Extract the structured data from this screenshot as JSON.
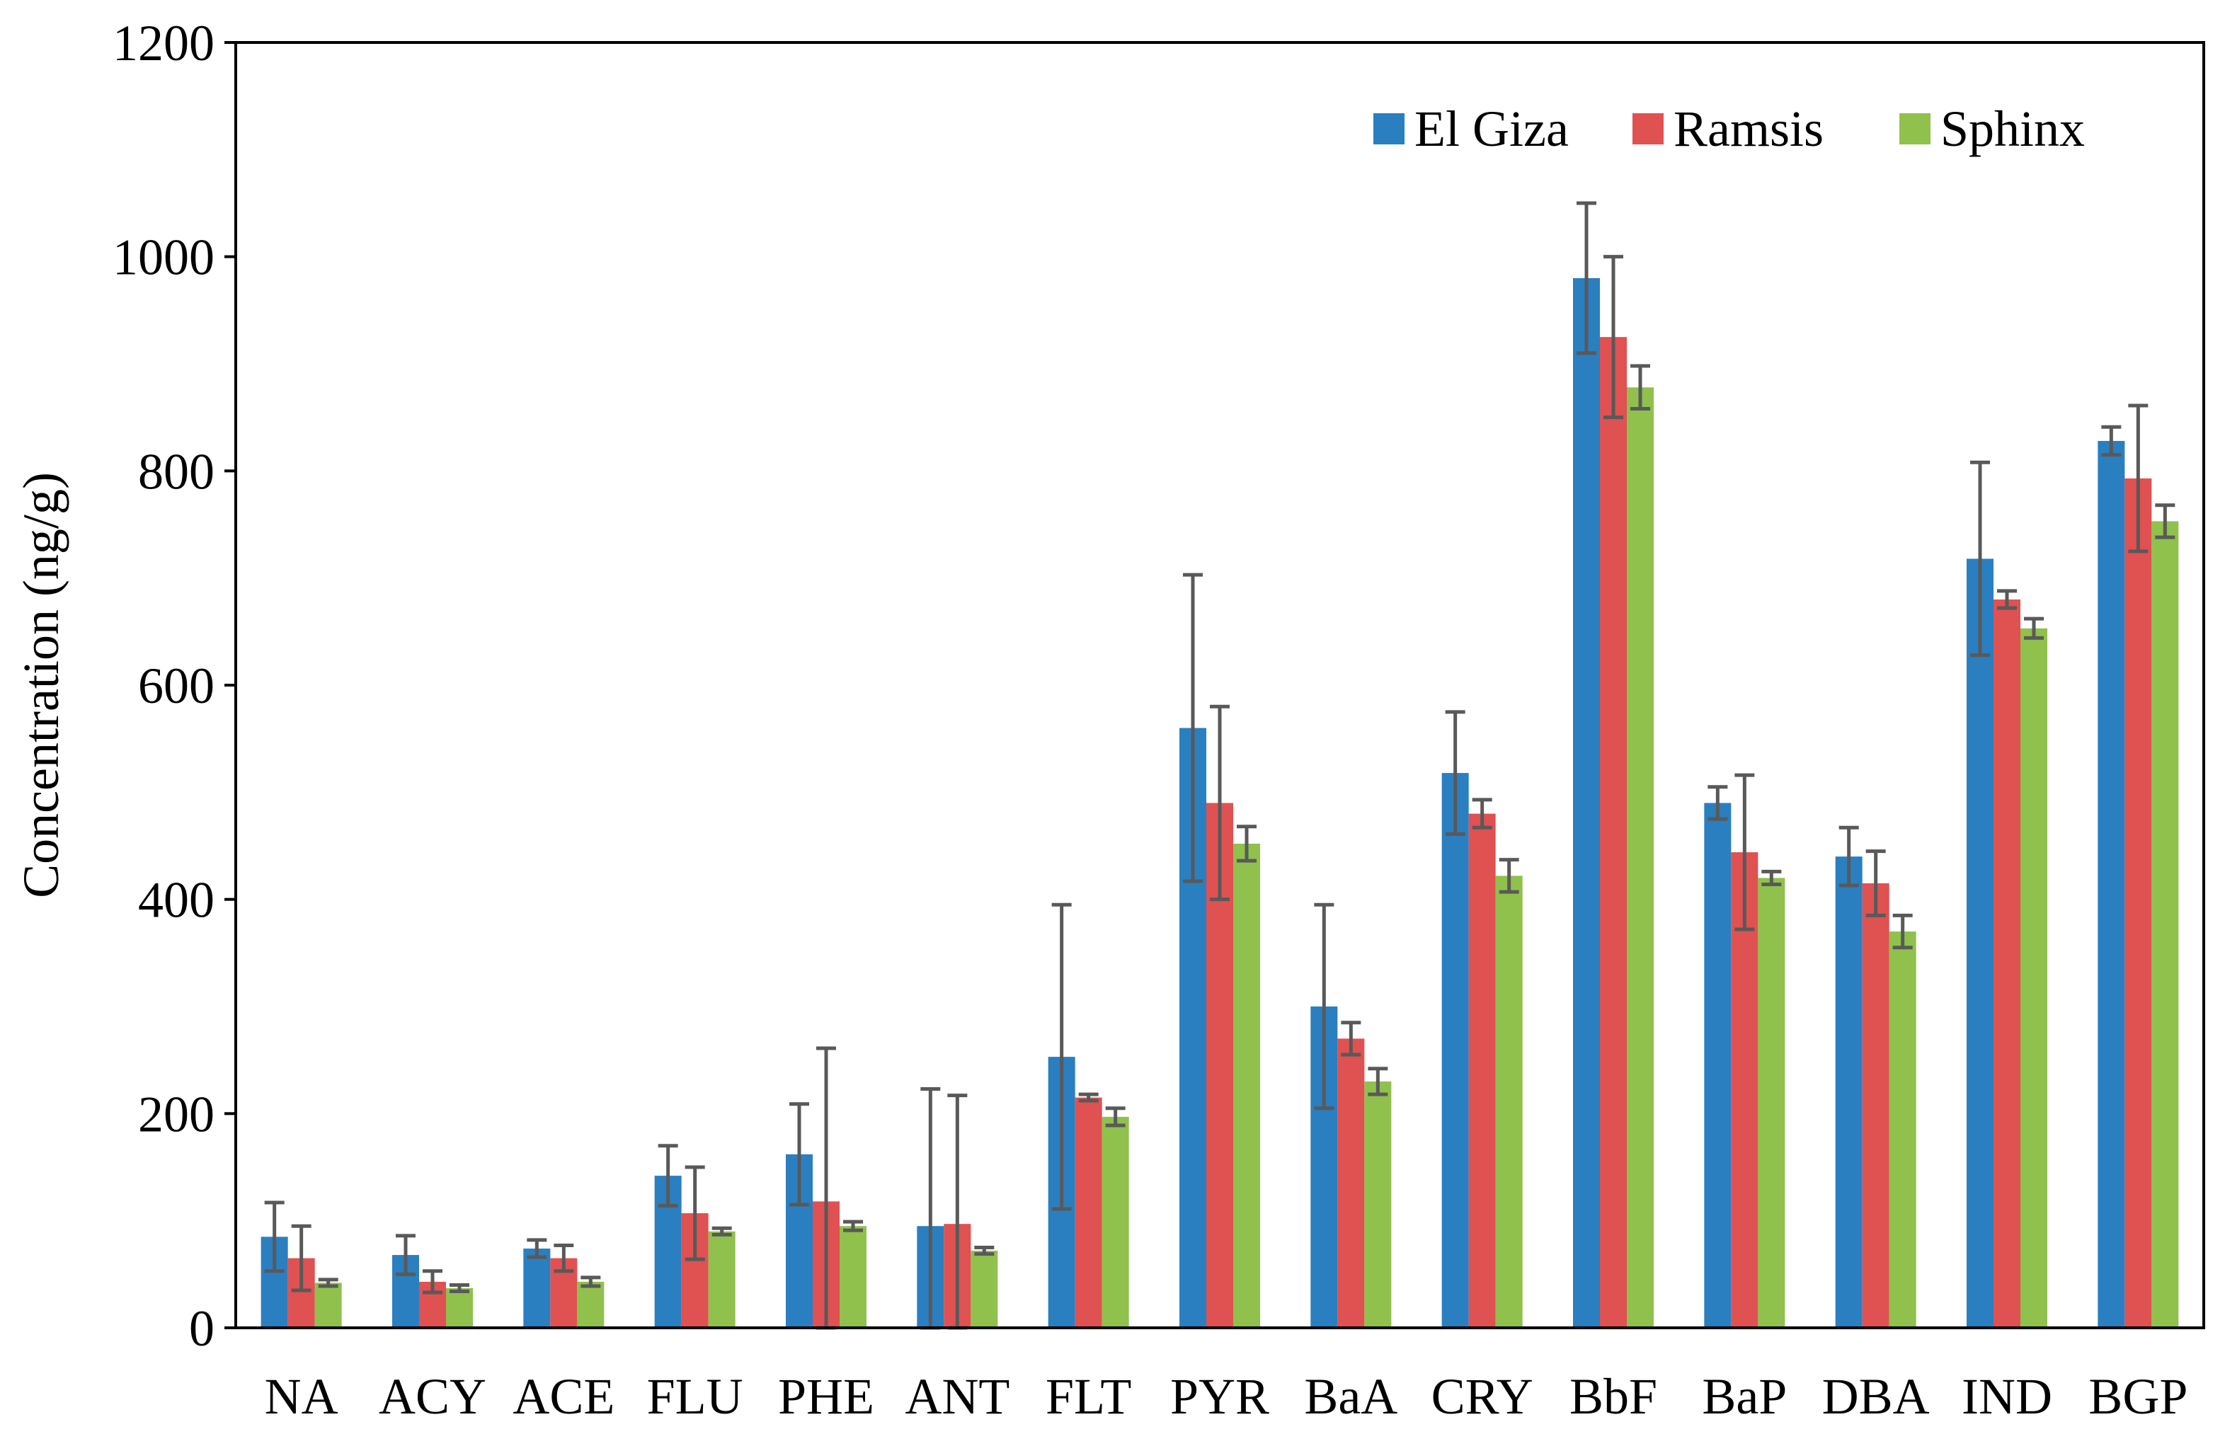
{
  "chart_data": {
    "type": "bar",
    "title": "",
    "xlabel": "",
    "ylabel": "Concentration (ng/g)",
    "ylim": [
      0,
      1200
    ],
    "yticks": [
      0,
      200,
      400,
      600,
      800,
      1000,
      1200
    ],
    "ytick_labels": [
      "0",
      "200",
      "400",
      "600",
      "800",
      "1000",
      "1200"
    ],
    "grid": false,
    "legend_position": "top-right",
    "categories": [
      "NA",
      "ACY",
      "ACE",
      "FLU",
      "PHE",
      "ANT",
      "FLT",
      "PYR",
      "BaA",
      "CRY",
      "BbF",
      "BaP",
      "DBA",
      "IND",
      "BGP"
    ],
    "series": [
      {
        "name": "El Giza",
        "color": "#2a7fc0",
        "values": [
          85,
          68,
          74,
          142,
          162,
          95,
          253,
          560,
          300,
          518,
          980,
          490,
          440,
          718,
          828
        ],
        "errors": [
          32,
          18,
          8,
          28,
          47,
          128,
          142,
          143,
          95,
          57,
          70,
          15,
          27,
          90,
          13
        ]
      },
      {
        "name": "Ramsis",
        "color": "#e05151",
        "values": [
          65,
          43,
          65,
          107,
          118,
          97,
          215,
          490,
          270,
          480,
          925,
          444,
          415,
          680,
          793
        ],
        "errors": [
          30,
          10,
          12,
          43,
          143,
          120,
          3,
          90,
          15,
          13,
          75,
          72,
          30,
          8,
          68
        ]
      },
      {
        "name": "Sphinx",
        "color": "#8fc14c",
        "values": [
          42,
          37,
          43,
          90,
          95,
          72,
          197,
          452,
          230,
          422,
          878,
          420,
          370,
          653,
          753
        ],
        "errors": [
          3,
          3,
          4,
          3,
          4,
          3,
          8,
          16,
          12,
          15,
          20,
          6,
          15,
          9,
          15
        ]
      }
    ]
  }
}
